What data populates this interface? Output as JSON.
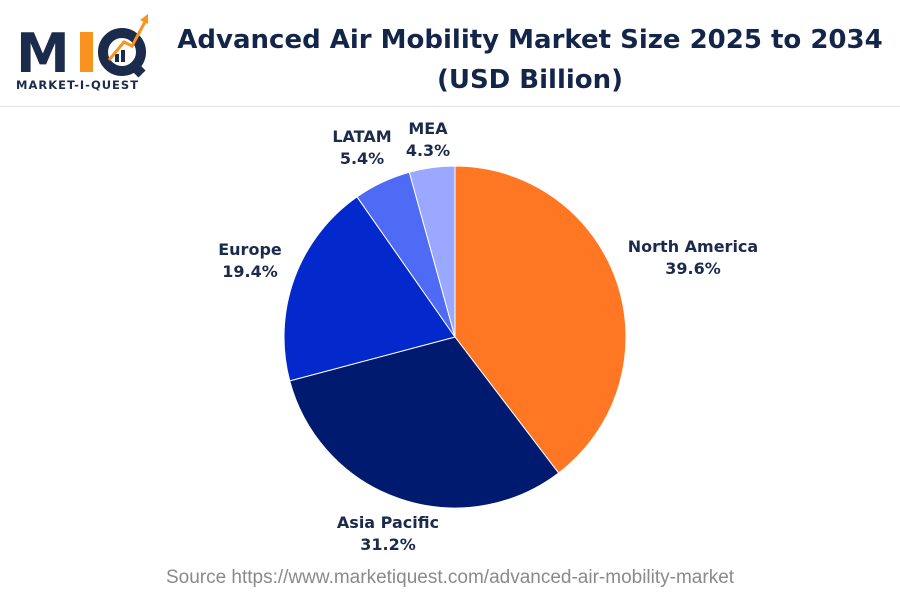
{
  "logo": {
    "text": "MIQ",
    "subtitle": "MARKET-I-QUEST"
  },
  "title_line1": "Advanced Air Mobility Market Size 2025 to 2034",
  "title_line2": "(USD Billion)",
  "source": "Source https://www.marketiquest.com/advanced-air-mobility-market",
  "chart_data": {
    "type": "pie",
    "title": "Advanced Air Mobility Market Size 2025 to 2034 (USD Billion)",
    "start_angle": "12 o'clock, clockwise",
    "slices": [
      {
        "label": "North America",
        "value": 39.6,
        "display": "39.6%",
        "color": "#FF7722"
      },
      {
        "label": "Asia Pacific",
        "value": 31.2,
        "display": "31.2%",
        "color": "#001A70"
      },
      {
        "label": "Europe",
        "value": 19.4,
        "display": "19.4%",
        "color": "#0328CC"
      },
      {
        "label": "LATAM",
        "value": 5.4,
        "display": "5.4%",
        "color": "#4F6BF5"
      },
      {
        "label": "MEA",
        "value": 4.3,
        "display": "4.3%",
        "color": "#9AA8FF"
      }
    ]
  }
}
